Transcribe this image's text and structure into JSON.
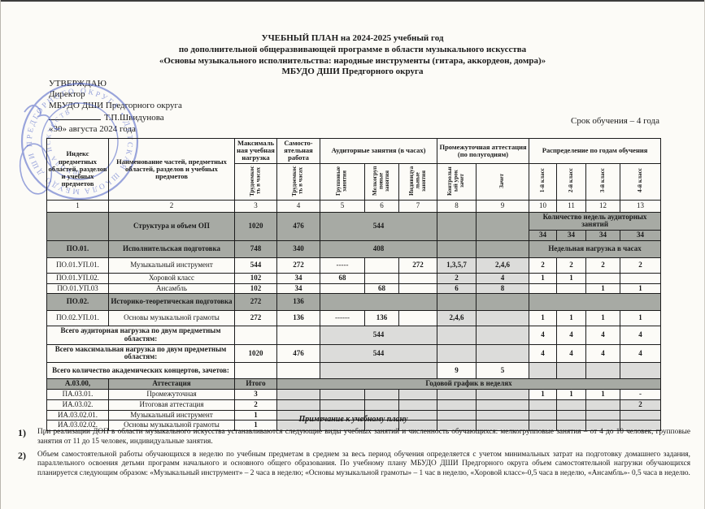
{
  "document": {
    "title_lines": [
      "УЧЕБНЫЙ ПЛАН на 2024-2025 учебный год",
      "по дополнительной общеразвивающей программе в области музыкального искусства",
      "«Основы музыкального исполнительства: народные инструменты (гитара, аккордеон, домра)»",
      "МБУДО ДШИ Предгорного округа"
    ],
    "approval": {
      "line1": "УТВЕРЖДАЮ",
      "line2": "Директор",
      "line3": "МБУДО ДШИ Предгорного округа",
      "signer": "Т.П.Швидунова",
      "date_line": "«30» августа 2024 года"
    },
    "term_note": "Срок обучения – 4 года",
    "stamp": {
      "ring_text": "МБУДО ДШИ ПРЕДГОРНОГО ОКРУГА • ДЕТСКАЯ ШКОЛА ИСКУССТВ •",
      "inner_text": "ШКОЛА ИСКУССТВ",
      "color": "#4a5ec5"
    },
    "colors": {
      "dark_row": "#a7aaa4",
      "light_cell": "#dcdcda",
      "paper": "#fcfbf7"
    }
  },
  "table": {
    "header": {
      "col1": "Индекс предметных областей, разделов и учебных предметов",
      "col2": "Наименование частей, предметных областей, разделов и учебных предметов",
      "col3_top": "Максимальная учебная нагрузка",
      "col4_top": "Самосто-ятельная работа",
      "aud_group": "Аудиторные занятия (в часах)",
      "attest_group": "Промежуточная аттестация (по полугодиям)",
      "years_group": "Распределение по годам обучения",
      "v3": "Трудоемкость в часах",
      "v4": "Трудоемкость в часах",
      "v5": "Групповые занятия",
      "v6": "Мелкогрупповые занятия",
      "v7": "Индивидуальные занятия",
      "v8": "Контрольный урок зачет",
      "v9": "Зачет",
      "v10": "1-й класс",
      "v11": "2-й класс",
      "v12": "3-й класс",
      "v13": "4-й класс",
      "col_numbers": [
        "1",
        "2",
        "3",
        "4",
        "5",
        "6",
        "7",
        "8",
        "9",
        "10",
        "11",
        "12",
        "13"
      ]
    },
    "rows": [
      {
        "h": 20,
        "cells": [
          {
            "t": "",
            "k": "dark",
            "r": 2
          },
          {
            "t": "Структура и объем ОП",
            "k": "dark b",
            "r": 2
          },
          {
            "t": "1020",
            "k": "dark b",
            "r": 2
          },
          {
            "t": "476",
            "k": "dark b vt",
            "r": 2
          },
          {
            "t": "544",
            "k": "dark b",
            "c": 3,
            "r": 2
          },
          {
            "t": "",
            "k": "dark",
            "r": 2
          },
          {
            "t": "",
            "k": "dark",
            "r": 2
          },
          {
            "t": "Количество недель аудиторных занятий",
            "k": "dark b",
            "c": 4
          }
        ]
      },
      {
        "h": 12,
        "cells": [
          {
            "t": "34",
            "k": "dark b"
          },
          {
            "t": "34",
            "k": "dark b"
          },
          {
            "t": "34",
            "k": "dark b"
          },
          {
            "t": "34",
            "k": "dark b"
          }
        ]
      },
      {
        "h": 21,
        "cells": [
          {
            "t": "ПО.01.",
            "k": "dark b vb"
          },
          {
            "t": "Исполнительская подготовка",
            "k": "dark b"
          },
          {
            "t": "748",
            "k": "dark b"
          },
          {
            "t": "340",
            "k": "dark b vt"
          },
          {
            "t": "408",
            "k": "dark b vb",
            "c": 3
          },
          {
            "t": "",
            "k": "dark"
          },
          {
            "t": "",
            "k": "dark"
          },
          {
            "t": "Недельная нагрузка в часах",
            "k": "dark b",
            "c": 4
          }
        ]
      },
      {
        "h": 19,
        "cells": [
          {
            "t": "ПО.01.УП.01."
          },
          {
            "t": "Музыкальный инструмент",
            "k": "tl"
          },
          {
            "t": "544",
            "k": "b vt"
          },
          {
            "t": "272",
            "k": "b vb"
          },
          {
            "t": "-----"
          },
          {
            "t": ""
          },
          {
            "t": "272",
            "k": "b"
          },
          {
            "t": "1,3,5,7",
            "k": "lg b"
          },
          {
            "t": "2,4,6",
            "k": "lg b"
          },
          {
            "t": "2",
            "k": "b"
          },
          {
            "t": "2",
            "k": "b"
          },
          {
            "t": "2",
            "k": "b"
          },
          {
            "t": "2",
            "k": "b"
          }
        ]
      },
      {
        "h": 11,
        "cells": [
          {
            "t": "ПО.01.УП.02."
          },
          {
            "t": "Хоровой класс",
            "k": "tl"
          },
          {
            "t": "102",
            "k": "b"
          },
          {
            "t": "34",
            "k": "b"
          },
          {
            "t": "68",
            "k": "b"
          },
          {
            "t": ""
          },
          {
            "t": ""
          },
          {
            "t": "2",
            "k": "lg b"
          },
          {
            "t": "4",
            "k": "lg b"
          },
          {
            "t": "1",
            "k": "b"
          },
          {
            "t": "1",
            "k": "b"
          },
          {
            "t": ""
          },
          {
            "t": ""
          }
        ]
      },
      {
        "h": 10,
        "cells": [
          {
            "t": "ПО.01.УП.03"
          },
          {
            "t": "Ансамбль",
            "k": "tl"
          },
          {
            "t": "102",
            "k": "b"
          },
          {
            "t": "34",
            "k": "b"
          },
          {
            "t": ""
          },
          {
            "t": "68",
            "k": "b"
          },
          {
            "t": ""
          },
          {
            "t": "6",
            "k": "lg b"
          },
          {
            "t": "8",
            "k": "lg b"
          },
          {
            "t": ""
          },
          {
            "t": ""
          },
          {
            "t": "1",
            "k": "b"
          },
          {
            "t": "1",
            "k": "b"
          }
        ]
      },
      {
        "h": 21,
        "cells": [
          {
            "t": "ПО.02.",
            "k": "dark b"
          },
          {
            "t": "Историко-теоретическая подготовка",
            "k": "dark b"
          },
          {
            "t": "272",
            "k": "dark b vt"
          },
          {
            "t": "136",
            "k": "dark b vt"
          },
          {
            "t": "",
            "k": "dark",
            "c": 3
          },
          {
            "t": "",
            "k": "dark"
          },
          {
            "t": "",
            "k": "dark"
          },
          {
            "t": "",
            "k": "dark",
            "c": 4
          }
        ]
      },
      {
        "h": 19,
        "cells": [
          {
            "t": "ПО.02.УП.01."
          },
          {
            "t": "Основы музыкальной грамоты",
            "k": "tl"
          },
          {
            "t": "272",
            "k": "b vt"
          },
          {
            "t": "136",
            "k": "b vb"
          },
          {
            "t": "------"
          },
          {
            "t": "136",
            "k": "b"
          },
          {
            "t": ""
          },
          {
            "t": "2,4,6",
            "k": "lg b"
          },
          {
            "t": "",
            "k": "lg"
          },
          {
            "t": "1",
            "k": "b"
          },
          {
            "t": "1",
            "k": "b"
          },
          {
            "t": "1",
            "k": "b"
          },
          {
            "t": "1",
            "k": "b"
          }
        ]
      },
      {
        "h": 20,
        "cells": [
          {
            "t": "Всего аудиторная нагрузка по двум предметным областям:",
            "k": "b",
            "c": 2
          },
          {
            "t": ""
          },
          {
            "t": ""
          },
          {
            "t": "544",
            "k": "lg b",
            "c": 3
          },
          {
            "t": "",
            "k": "lg"
          },
          {
            "t": "",
            "k": "lg"
          },
          {
            "t": "4",
            "k": "b"
          },
          {
            "t": "4",
            "k": "b"
          },
          {
            "t": "4",
            "k": "b"
          },
          {
            "t": "4",
            "k": "b"
          }
        ]
      },
      {
        "h": 20,
        "cells": [
          {
            "t": "Всего максимальная нагрузка по двум предметным областям:",
            "k": "b",
            "c": 2
          },
          {
            "t": "1020",
            "k": "b"
          },
          {
            "t": "476",
            "k": "b vt"
          },
          {
            "t": "544",
            "k": "lg b",
            "c": 3
          },
          {
            "t": "",
            "k": "lg"
          },
          {
            "t": "",
            "k": "lg"
          },
          {
            "t": "4",
            "k": "b"
          },
          {
            "t": "4",
            "k": "b"
          },
          {
            "t": "4",
            "k": "b"
          },
          {
            "t": "4",
            "k": "b"
          }
        ]
      },
      {
        "h": 20,
        "cells": [
          {
            "t": "Всего количество академических концертов, зачетов:",
            "k": "b",
            "c": 2
          },
          {
            "t": ""
          },
          {
            "t": ""
          },
          {
            "t": "",
            "k": "lg",
            "c": 3
          },
          {
            "t": "9",
            "k": "b"
          },
          {
            "t": "5",
            "k": "b"
          },
          {
            "t": "",
            "k": "lg"
          },
          {
            "t": "",
            "k": "lg"
          },
          {
            "t": "",
            "k": "lg"
          },
          {
            "t": "",
            "k": "lg"
          }
        ]
      },
      {
        "h": 13,
        "cells": [
          {
            "t": "А.03.00,",
            "k": "dark b"
          },
          {
            "t": "Аттестация",
            "k": "dark b"
          },
          {
            "t": "Итого",
            "k": "dark b"
          },
          {
            "t": "Годовой график в неделях",
            "k": "dark b",
            "c": 10
          }
        ]
      },
      {
        "h": 12,
        "cells": [
          {
            "t": "ПА.03.01."
          },
          {
            "t": "Промежуточная",
            "k": "tl"
          },
          {
            "t": "3",
            "k": "b"
          },
          {
            "t": "",
            "k": "lg"
          },
          {
            "t": "",
            "k": "lg"
          },
          {
            "t": "",
            "k": "lg"
          },
          {
            "t": "",
            "k": "lg"
          },
          {
            "t": "",
            "k": "lg"
          },
          {
            "t": "",
            "k": "lg"
          },
          {
            "t": "1",
            "k": "b"
          },
          {
            "t": "1",
            "k": "b"
          },
          {
            "t": "1",
            "k": "b"
          },
          {
            "t": "-",
            "k": "b"
          }
        ]
      },
      {
        "h": 12,
        "cells": [
          {
            "t": "ИА.03.02."
          },
          {
            "t": "Итоговая аттестация",
            "k": "tl"
          },
          {
            "t": "2",
            "k": "b"
          },
          {
            "t": "",
            "k": "lg"
          },
          {
            "t": "",
            "k": "lg"
          },
          {
            "t": "",
            "k": "lg"
          },
          {
            "t": "",
            "k": "lg"
          },
          {
            "t": "",
            "k": "lg"
          },
          {
            "t": "",
            "k": "lg"
          },
          {
            "t": "",
            "k": "lg"
          },
          {
            "t": "",
            "k": "lg"
          },
          {
            "t": "",
            "k": "lg"
          },
          {
            "t": "2",
            "k": "lg b"
          }
        ]
      },
      {
        "h": 12,
        "cells": [
          {
            "t": "ИА.03.02.01."
          },
          {
            "t": "Музыкальный инструмент",
            "k": "tl"
          },
          {
            "t": "1",
            "k": "b"
          },
          {
            "t": "",
            "k": "lg"
          },
          {
            "t": "",
            "k": "lg"
          },
          {
            "t": "",
            "k": "lg"
          },
          {
            "t": "",
            "k": "lg"
          },
          {
            "t": "",
            "k": "lg"
          },
          {
            "t": "",
            "k": "lg"
          },
          {
            "t": "",
            "k": "lg"
          },
          {
            "t": "",
            "k": "lg"
          },
          {
            "t": "",
            "k": "lg"
          },
          {
            "t": "",
            "k": "lg"
          }
        ]
      },
      {
        "h": 12,
        "cells": [
          {
            "t": "ИА.03.02.02."
          },
          {
            "t": "Основы музыкальной грамоты",
            "k": "tl"
          },
          {
            "t": "1",
            "k": "b"
          },
          {
            "t": "",
            "k": "lg"
          },
          {
            "t": "",
            "k": "lg"
          },
          {
            "t": "",
            "k": "lg"
          },
          {
            "t": "",
            "k": "lg"
          },
          {
            "t": "",
            "k": "lg"
          },
          {
            "t": "",
            "k": "lg"
          },
          {
            "t": "",
            "k": "lg"
          },
          {
            "t": "",
            "k": "lg"
          },
          {
            "t": "",
            "k": "lg"
          },
          {
            "t": "",
            "k": "lg"
          }
        ]
      }
    ]
  },
  "notes": {
    "heading": "Примечание к учебному плану",
    "items": [
      {
        "num": "1)",
        "text": "При реализации ДОП в области музыкального искусства устанавливаются следующие виды учебных занятий и численность обучающихся: мелкогрупповые занятия – от 4 до 10 человек, групповые занятия от 11 до 15 человек, индивидуальные занятия."
      },
      {
        "num": "2)",
        "text": "Объем самостоятельной работы обучающихся в неделю по учебным предметам в среднем за весь период обучения определяется с учетом минимальных затрат на подготовку домашнего задания, параллельного освоения детьми программ начального и основного общего образования. По учебному плану МБУДО ДШИ Предгорного округа объем самостоятельной нагрузки обучающихся планируется следующим образом: «Музыкальный инструмент» – 2 часа в неделю; «Основы музыкальной грамоты» – 1 час в неделю, «Хоровой класс»-0,5 часа в неделю, «Ансамбль»- 0,5 часа в неделю."
      }
    ]
  }
}
